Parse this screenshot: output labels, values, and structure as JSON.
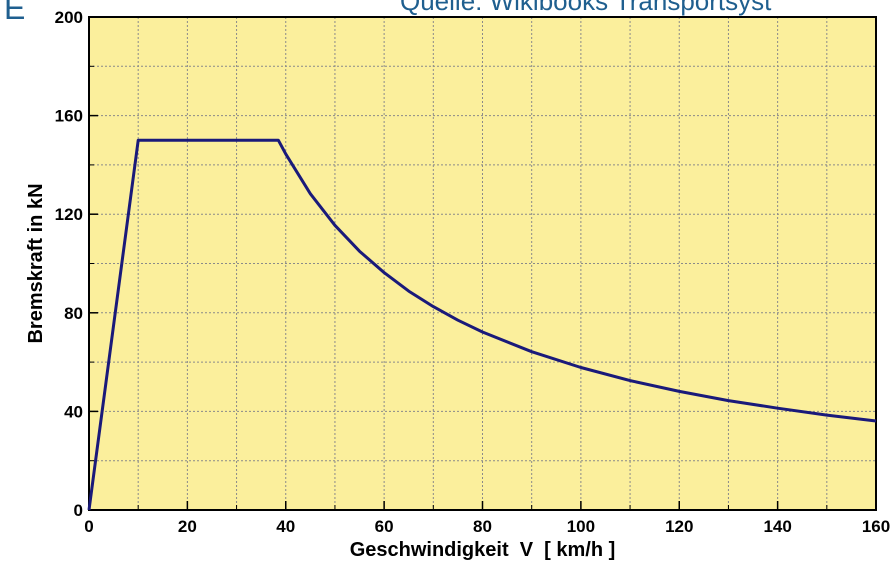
{
  "slide": {
    "corner_letter": "E",
    "top_caption": "Quelle: Wikibooks Transportsyst"
  },
  "chart_data": {
    "type": "line",
    "title": "",
    "xlabel": "Geschwindigkeit  V  [ km/h ]",
    "ylabel": "Bremskraft in kN",
    "xlim": [
      0,
      160
    ],
    "ylim": [
      0,
      200
    ],
    "x_major_ticks": [
      0,
      20,
      40,
      60,
      80,
      100,
      120,
      140,
      160
    ],
    "y_major_ticks": [
      0,
      40,
      80,
      120,
      160,
      200
    ],
    "x_minor_step": 10,
    "y_minor_step": 20,
    "grid": true,
    "legend": "none",
    "colors": {
      "plot_background": "#fbef9c",
      "line": "#1a1a7a",
      "grid": "#8a8a8a",
      "axis": "#000000"
    },
    "series": [
      {
        "x": [
          0,
          10,
          38.5,
          40,
          45,
          50,
          55,
          60,
          65,
          70,
          75,
          80,
          90,
          100,
          110,
          120,
          130,
          140,
          150,
          160
        ],
        "y": [
          0,
          150,
          150,
          144.4,
          128.3,
          115.5,
          105,
          96.3,
          88.8,
          82.5,
          77,
          72.2,
          64.2,
          57.8,
          52.5,
          48.1,
          44.4,
          41.3,
          38.5,
          36.1
        ]
      }
    ]
  }
}
